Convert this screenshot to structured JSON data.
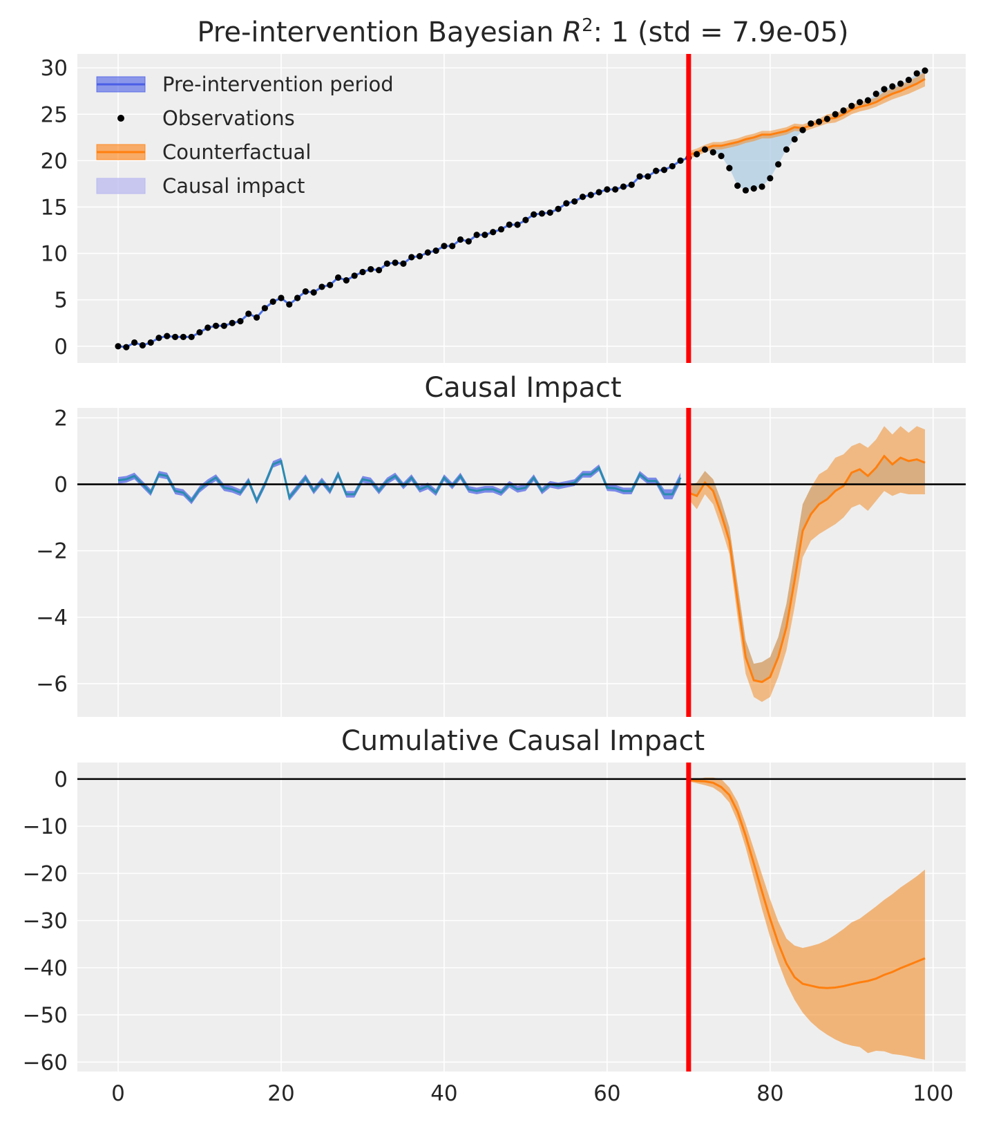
{
  "figure": {
    "intervention_x": 70,
    "colors": {
      "background": "#eeeeee",
      "grid": "#ffffff",
      "pre": "#4c72e8",
      "pre_fill": "#4a5ee6",
      "counterfactual": "#ff7f0e",
      "counterfactual_fill": "#f28e2b",
      "causal_fill": "#a9cbe3",
      "observations": "#000000",
      "intervention_line": "#ff0000",
      "zero_line": "#000000"
    }
  },
  "legend": {
    "items": [
      {
        "label": "Pre-intervention period",
        "kind": "band-line",
        "color": "#4a5ee6"
      },
      {
        "label": "Observations",
        "kind": "dot",
        "color": "#000000"
      },
      {
        "label": "Counterfactual",
        "kind": "band-line",
        "color": "#ff7f0e"
      },
      {
        "label": "Causal impact",
        "kind": "band",
        "color": "#b9b9f0"
      }
    ]
  },
  "chart_data": [
    {
      "type": "line",
      "title_prefix": "Pre-intervention Bayesian ",
      "title_math": "R",
      "title_sup": "2",
      "title_suffix": ": 1 (std = 7.9e-05)",
      "xlim": [
        -5,
        104
      ],
      "ylim": [
        -1.8,
        31.5
      ],
      "yticks": [
        0,
        5,
        10,
        15,
        20,
        25,
        30
      ],
      "ytick_labels": [
        "0",
        "5",
        "10",
        "15",
        "20",
        "25",
        "30"
      ],
      "xticks": [
        0,
        20,
        40,
        60,
        80,
        100
      ],
      "series": [
        {
          "name": "Observations",
          "x": [
            0,
            1,
            2,
            3,
            4,
            5,
            6,
            7,
            8,
            9,
            10,
            11,
            12,
            13,
            14,
            15,
            16,
            17,
            18,
            19,
            20,
            21,
            22,
            23,
            24,
            25,
            26,
            27,
            28,
            29,
            30,
            31,
            32,
            33,
            34,
            35,
            36,
            37,
            38,
            39,
            40,
            41,
            42,
            43,
            44,
            45,
            46,
            47,
            48,
            49,
            50,
            51,
            52,
            53,
            54,
            55,
            56,
            57,
            58,
            59,
            60,
            61,
            62,
            63,
            64,
            65,
            66,
            67,
            68,
            69,
            70,
            71,
            72,
            73,
            74,
            75,
            76,
            77,
            78,
            79,
            80,
            81,
            82,
            83,
            84,
            85,
            86,
            87,
            88,
            89,
            90,
            91,
            92,
            93,
            94,
            95,
            96,
            97,
            98,
            99
          ],
          "values": [
            0.0,
            -0.1,
            0.4,
            0.1,
            0.4,
            0.9,
            1.1,
            1.0,
            1.0,
            1.0,
            1.5,
            2.0,
            2.2,
            2.2,
            2.5,
            2.7,
            3.5,
            3.1,
            4.1,
            4.8,
            5.2,
            4.5,
            5.2,
            5.9,
            5.8,
            6.4,
            6.6,
            7.4,
            7.1,
            7.6,
            8.0,
            8.3,
            8.2,
            8.9,
            9.0,
            8.9,
            9.6,
            9.7,
            10.1,
            10.3,
            10.8,
            10.8,
            11.5,
            11.3,
            12.0,
            12.0,
            12.3,
            12.6,
            13.1,
            13.1,
            13.6,
            14.2,
            14.3,
            14.4,
            14.8,
            15.4,
            15.6,
            16.1,
            16.3,
            16.6,
            16.9,
            16.9,
            17.2,
            17.4,
            18.3,
            18.3,
            18.9,
            19.0,
            19.4,
            20.0,
            20.3,
            20.7,
            21.2,
            20.9,
            20.5,
            19.2,
            17.3,
            16.8,
            17.0,
            17.2,
            18.1,
            19.6,
            21.2,
            22.3,
            23.3,
            24.0,
            24.2,
            24.5,
            25.0,
            25.4,
            25.9,
            26.3,
            26.5,
            27.2,
            27.7,
            28.0,
            28.3,
            28.7,
            29.4,
            29.7
          ]
        },
        {
          "name": "Counterfactual",
          "x": [
            70,
            71,
            72,
            73,
            74,
            75,
            76,
            77,
            78,
            79,
            80,
            81,
            82,
            83,
            84,
            85,
            86,
            87,
            88,
            89,
            90,
            91,
            92,
            93,
            94,
            95,
            96,
            97,
            98,
            99
          ],
          "values": [
            20.6,
            20.9,
            21.3,
            21.6,
            21.6,
            21.8,
            22.0,
            22.3,
            22.5,
            22.8,
            22.8,
            23.0,
            23.2,
            23.6,
            23.5,
            23.8,
            24.1,
            24.5,
            24.6,
            25.0,
            25.5,
            25.8,
            26.0,
            26.3,
            26.8,
            27.2,
            27.5,
            27.9,
            28.3,
            28.8
          ],
          "lower": [
            20.2,
            20.5,
            20.9,
            21.2,
            21.2,
            21.4,
            21.6,
            21.9,
            22.1,
            22.4,
            22.4,
            22.6,
            22.8,
            23.2,
            23.1,
            23.4,
            23.7,
            24.0,
            24.1,
            24.5,
            25.0,
            25.3,
            25.5,
            25.8,
            26.2,
            26.6,
            26.9,
            27.2,
            27.6,
            28.0
          ],
          "upper": [
            21.0,
            21.3,
            21.7,
            22.0,
            22.0,
            22.2,
            22.4,
            22.7,
            22.9,
            23.2,
            23.2,
            23.4,
            23.6,
            24.0,
            23.9,
            24.2,
            24.5,
            25.0,
            25.1,
            25.5,
            26.0,
            26.3,
            26.5,
            26.8,
            27.4,
            27.8,
            28.1,
            28.6,
            29.0,
            29.6
          ]
        }
      ]
    },
    {
      "type": "line",
      "title": "Causal Impact",
      "xlim": [
        -5,
        104
      ],
      "ylim": [
        -7.0,
        2.3
      ],
      "yticks": [
        2,
        0,
        -2,
        -4,
        -6
      ],
      "ytick_labels": [
        "2",
        "0",
        "−2",
        "−4",
        "−6"
      ],
      "xticks": [
        0,
        20,
        40,
        60,
        80,
        100
      ],
      "series": [
        {
          "name": "Pre-intervention period",
          "x": [
            0,
            1,
            2,
            3,
            4,
            5,
            6,
            7,
            8,
            9,
            10,
            11,
            12,
            13,
            14,
            15,
            16,
            17,
            18,
            19,
            20,
            21,
            22,
            23,
            24,
            25,
            26,
            27,
            28,
            29,
            30,
            31,
            32,
            33,
            34,
            35,
            36,
            37,
            38,
            39,
            40,
            41,
            42,
            43,
            44,
            45,
            46,
            47,
            48,
            49,
            50,
            51,
            52,
            53,
            54,
            55,
            56,
            57,
            58,
            59,
            60,
            61,
            62,
            63,
            64,
            65,
            66,
            67,
            68,
            69
          ],
          "values": [
            0.12,
            0.15,
            0.25,
            0.0,
            -0.25,
            0.3,
            0.25,
            -0.2,
            -0.25,
            -0.5,
            -0.15,
            0.05,
            0.2,
            -0.1,
            -0.15,
            -0.25,
            0.1,
            -0.5,
            0.0,
            0.6,
            0.7,
            -0.4,
            -0.1,
            0.2,
            -0.2,
            0.1,
            -0.2,
            0.3,
            -0.3,
            -0.3,
            0.15,
            0.1,
            -0.2,
            0.1,
            0.25,
            -0.05,
            0.2,
            -0.15,
            -0.05,
            -0.25,
            0.2,
            -0.05,
            0.25,
            -0.15,
            -0.2,
            -0.15,
            -0.15,
            -0.25,
            0.0,
            -0.15,
            -0.1,
            0.2,
            -0.2,
            0.0,
            -0.05,
            0.0,
            0.05,
            0.3,
            0.3,
            0.5,
            -0.1,
            -0.12,
            -0.2,
            -0.2,
            0.3,
            0.1,
            0.1,
            -0.3,
            -0.3,
            0.2
          ],
          "lower": [
            0.02,
            0.05,
            0.15,
            -0.1,
            -0.35,
            0.2,
            0.15,
            -0.3,
            -0.35,
            -0.6,
            -0.25,
            -0.05,
            0.1,
            -0.2,
            -0.25,
            -0.35,
            0.0,
            -0.6,
            -0.1,
            0.5,
            0.6,
            -0.5,
            -0.2,
            0.1,
            -0.3,
            0.0,
            -0.3,
            0.2,
            -0.4,
            -0.4,
            0.05,
            0.0,
            -0.3,
            0.0,
            0.15,
            -0.15,
            0.1,
            -0.25,
            -0.15,
            -0.35,
            0.1,
            -0.15,
            0.15,
            -0.25,
            -0.3,
            -0.25,
            -0.25,
            -0.35,
            -0.1,
            -0.25,
            -0.2,
            0.1,
            -0.3,
            -0.1,
            -0.15,
            -0.1,
            -0.05,
            0.2,
            0.2,
            0.4,
            -0.2,
            -0.22,
            -0.3,
            -0.3,
            0.2,
            0.0,
            0.0,
            -0.45,
            -0.45,
            0.05
          ],
          "upper": [
            0.22,
            0.25,
            0.35,
            0.1,
            -0.15,
            0.4,
            0.35,
            -0.1,
            -0.15,
            -0.4,
            -0.05,
            0.15,
            0.3,
            0.0,
            -0.05,
            -0.15,
            0.2,
            -0.4,
            0.1,
            0.7,
            0.8,
            -0.3,
            0.0,
            0.3,
            -0.1,
            0.2,
            -0.1,
            0.4,
            -0.2,
            -0.2,
            0.25,
            0.2,
            -0.1,
            0.2,
            0.35,
            0.05,
            0.3,
            -0.05,
            0.05,
            -0.15,
            0.3,
            0.05,
            0.35,
            -0.05,
            -0.1,
            -0.05,
            -0.05,
            -0.15,
            0.1,
            -0.05,
            0.0,
            0.3,
            -0.1,
            0.1,
            0.05,
            0.1,
            0.15,
            0.4,
            0.4,
            0.6,
            0.0,
            -0.02,
            -0.1,
            -0.1,
            0.4,
            0.2,
            0.2,
            -0.15,
            -0.15,
            0.35
          ]
        },
        {
          "name": "Counterfactual",
          "x": [
            70,
            71,
            72,
            73,
            74,
            75,
            76,
            77,
            78,
            79,
            80,
            81,
            82,
            83,
            84,
            85,
            86,
            87,
            88,
            89,
            90,
            91,
            92,
            93,
            94,
            95,
            96,
            97,
            98,
            99
          ],
          "values": [
            -0.25,
            -0.35,
            0.05,
            -0.2,
            -0.9,
            -1.7,
            -3.5,
            -5.2,
            -5.9,
            -5.95,
            -5.8,
            -5.2,
            -4.3,
            -2.9,
            -1.4,
            -0.9,
            -0.6,
            -0.45,
            -0.2,
            -0.05,
            0.35,
            0.45,
            0.25,
            0.5,
            0.85,
            0.6,
            0.8,
            0.7,
            0.75,
            0.65
          ],
          "lower": [
            -0.45,
            -0.75,
            -0.3,
            -0.6,
            -1.3,
            -2.1,
            -4.0,
            -5.7,
            -6.4,
            -6.55,
            -6.4,
            -5.8,
            -5.0,
            -3.7,
            -2.2,
            -1.7,
            -1.5,
            -1.35,
            -1.2,
            -1.0,
            -0.7,
            -0.6,
            -0.8,
            -0.5,
            -0.2,
            -0.35,
            -0.25,
            -0.3,
            -0.3,
            -0.3
          ],
          "upper": [
            -0.05,
            0.05,
            0.4,
            0.15,
            -0.5,
            -1.3,
            -3.0,
            -4.7,
            -5.4,
            -5.35,
            -5.2,
            -4.6,
            -3.6,
            -2.1,
            -0.6,
            -0.1,
            0.3,
            0.45,
            0.8,
            0.9,
            1.15,
            1.25,
            1.1,
            1.35,
            1.75,
            1.5,
            1.75,
            1.55,
            1.75,
            1.65
          ]
        },
        {
          "name": "Causal impact fill",
          "x": [
            70,
            71,
            72,
            73,
            74,
            75,
            76,
            77,
            78,
            79,
            80,
            81,
            82,
            83,
            84,
            85,
            86,
            87,
            88,
            89,
            90,
            91,
            92,
            93,
            94,
            95,
            96,
            97,
            98,
            99
          ],
          "values": [
            -0.05,
            0.05,
            0.4,
            0.15,
            -0.5,
            -1.3,
            -3.0,
            -4.7,
            -5.4,
            -5.35,
            -5.2,
            -4.6,
            -3.6,
            -2.1,
            -0.6,
            -0.1,
            0.0,
            0.0,
            0.0,
            0.0,
            0.0,
            0.0,
            0.0,
            0.0,
            0.0,
            0.0,
            0.0,
            0.0,
            0.0,
            0.0
          ]
        }
      ]
    },
    {
      "type": "area",
      "title": "Cumulative Causal Impact",
      "xlim": [
        -5,
        104
      ],
      "ylim": [
        -62,
        3.5
      ],
      "yticks": [
        0,
        -10,
        -20,
        -30,
        -40,
        -50,
        -60
      ],
      "ytick_labels": [
        "0",
        "−10",
        "−20",
        "−30",
        "−40",
        "−50",
        "−60"
      ],
      "xticks": [
        0,
        20,
        40,
        60,
        80,
        100
      ],
      "xtick_labels": [
        "0",
        "20",
        "40",
        "60",
        "80",
        "100"
      ],
      "series": [
        {
          "name": "Counterfactual",
          "x": [
            70,
            71,
            72,
            73,
            74,
            75,
            76,
            77,
            78,
            79,
            80,
            81,
            82,
            83,
            84,
            85,
            86,
            87,
            88,
            89,
            90,
            91,
            92,
            93,
            94,
            95,
            96,
            97,
            98,
            99
          ],
          "values": [
            -0.2,
            -0.4,
            -0.5,
            -0.8,
            -1.7,
            -3.4,
            -6.9,
            -12.0,
            -17.9,
            -23.8,
            -29.6,
            -34.8,
            -39.1,
            -42.0,
            -43.4,
            -43.8,
            -44.2,
            -44.3,
            -44.2,
            -43.9,
            -43.5,
            -43.1,
            -42.8,
            -42.3,
            -41.5,
            -40.9,
            -40.1,
            -39.4,
            -38.7,
            -38.0
          ],
          "lower": [
            -0.5,
            -0.9,
            -1.3,
            -1.8,
            -3.0,
            -5.0,
            -9.0,
            -14.5,
            -21.0,
            -27.5,
            -33.5,
            -38.8,
            -43.3,
            -46.8,
            -49.5,
            -51.5,
            -53.0,
            -54.2,
            -55.2,
            -56.0,
            -56.5,
            -56.8,
            -58.1,
            -57.6,
            -57.7,
            -58.3,
            -58.5,
            -58.8,
            -59.2,
            -59.5
          ],
          "upper": [
            0.0,
            0.0,
            0.3,
            0.3,
            0.0,
            -1.8,
            -4.8,
            -9.5,
            -14.8,
            -20.2,
            -25.5,
            -30.2,
            -33.8,
            -35.3,
            -35.8,
            -35.4,
            -34.9,
            -34.1,
            -33.0,
            -31.8,
            -30.4,
            -29.6,
            -28.3,
            -27.0,
            -25.6,
            -24.4,
            -23.0,
            -21.8,
            -20.6,
            -19.2
          ]
        }
      ]
    }
  ]
}
